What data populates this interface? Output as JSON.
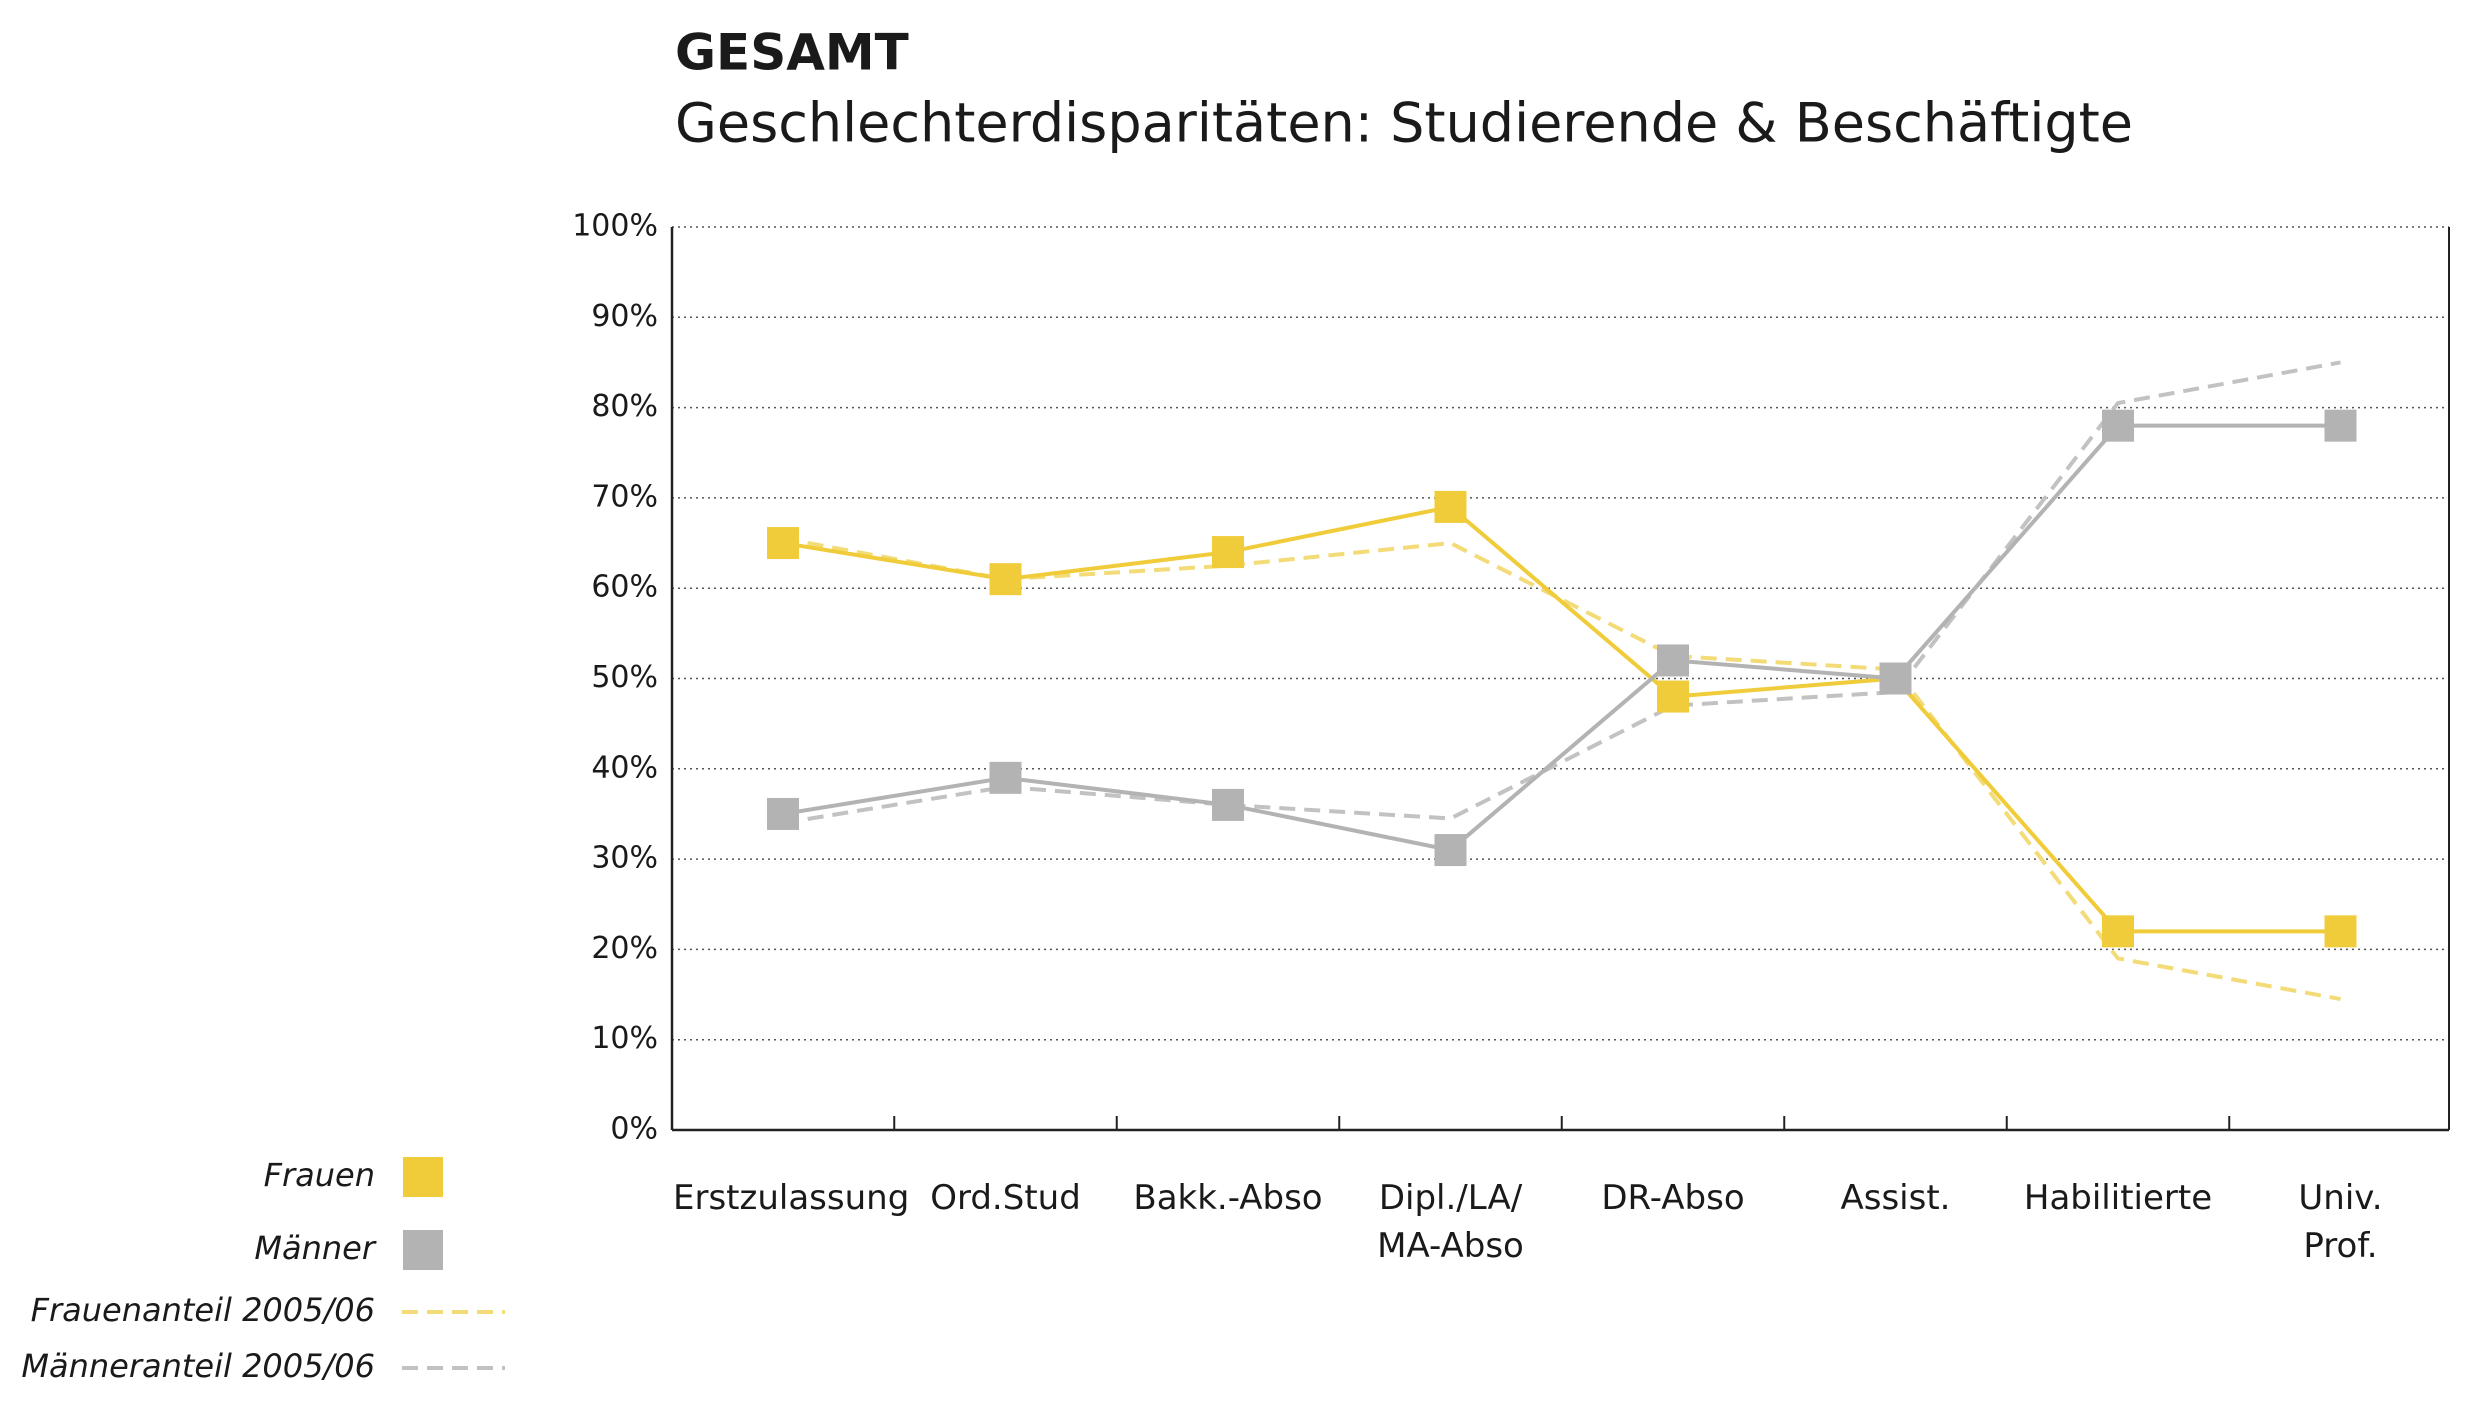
{
  "chart_data": {
    "type": "line",
    "title": "GESAMT",
    "subtitle": "Geschlechterdisparitäten: Studierende & Beschäftigte",
    "categories": [
      "Erstzulassung",
      "Ord.Stud",
      "Bakk.-Abso",
      "Dipl./LA/\nMA-Abso",
      "DR-Abso",
      "Assist.",
      "Habilitierte",
      "Univ.\nProf."
    ],
    "series": [
      {
        "name": "Frauenanteil 2005/06",
        "color": "#f3db78",
        "dashed": true,
        "values": [
          65.5,
          61,
          62.5,
          65,
          52.5,
          51,
          19,
          14.5
        ]
      },
      {
        "name": "Männeranteil 2005/06",
        "color": "#c2c2c2",
        "dashed": true,
        "values": [
          34,
          38,
          36,
          34.5,
          47,
          48.5,
          80.5,
          85
        ]
      },
      {
        "name": "Frauen",
        "color": "#f0cc3a",
        "dashed": false,
        "values": [
          65,
          61,
          64,
          69,
          48,
          50,
          22,
          22
        ]
      },
      {
        "name": "Männer",
        "color": "#b3b3b3",
        "dashed": false,
        "values": [
          35,
          39,
          36,
          31,
          52,
          50,
          78,
          78
        ]
      }
    ],
    "ylim": [
      0,
      100
    ],
    "yticks": [
      {
        "value": 0,
        "label": "0%"
      },
      {
        "value": 10,
        "label": "10%"
      },
      {
        "value": 20,
        "label": "20%"
      },
      {
        "value": 30,
        "label": "30%"
      },
      {
        "value": 40,
        "label": "40%"
      },
      {
        "value": 50,
        "label": "50%"
      },
      {
        "value": 60,
        "label": "60%"
      },
      {
        "value": 70,
        "label": "70%"
      },
      {
        "value": 80,
        "label": "80%"
      },
      {
        "value": 90,
        "label": "90%"
      },
      {
        "value": 100,
        "label": "100%"
      }
    ],
    "grid": true,
    "legend": "bottom-left"
  }
}
